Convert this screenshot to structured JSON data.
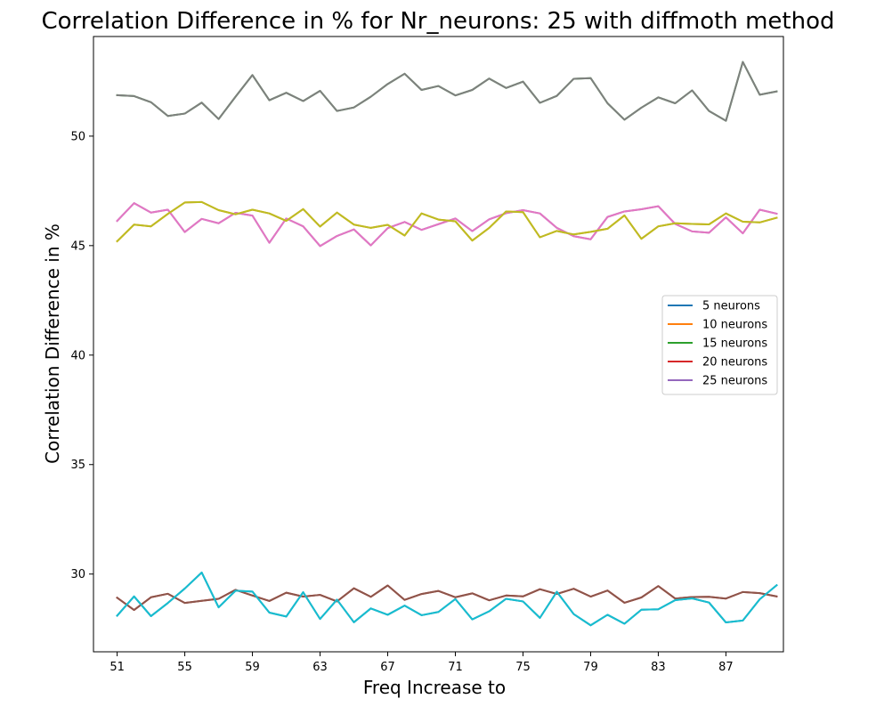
{
  "chart_data": {
    "type": "line",
    "title": "Correlation Difference in % for Nr_neurons:  25 with diffmoth method",
    "xlabel": "Freq Increase to",
    "ylabel": "Correlation Difference in %",
    "xlim": [
      49.6,
      90.4
    ],
    "ylim": [
      26.45,
      54.55
    ],
    "x_ticks": [
      51,
      55,
      59,
      63,
      67,
      71,
      75,
      79,
      83,
      87
    ],
    "x_tick_labels": [
      "51",
      "55",
      "59",
      "63",
      "67",
      "71",
      "75",
      "79",
      "83",
      "87"
    ],
    "y_ticks": [
      30,
      35,
      40,
      45,
      50
    ],
    "y_tick_labels": [
      "30",
      "35",
      "40",
      "45",
      "50"
    ],
    "x": [
      51,
      52,
      53,
      54,
      55,
      56,
      57,
      58,
      59,
      60,
      61,
      62,
      63,
      64,
      65,
      66,
      67,
      68,
      69,
      70,
      71,
      72,
      73,
      74,
      75,
      76,
      77,
      78,
      79,
      80,
      81,
      82,
      83,
      84,
      85,
      86,
      87,
      88,
      89,
      90
    ],
    "grid": false,
    "legend_position": "center-right",
    "series": [
      {
        "name": "5 neurons",
        "color": "#1f77b4",
        "values": [
          28.1,
          28.98,
          28.08,
          28.68,
          29.34,
          30.07,
          28.48,
          29.24,
          29.2,
          28.24,
          28.06,
          29.17,
          27.95,
          28.83,
          27.8,
          28.43,
          28.14,
          28.56,
          28.12,
          28.27,
          28.86,
          27.93,
          28.3,
          28.87,
          28.75,
          28.0,
          29.19,
          28.17,
          27.66,
          28.14,
          27.73,
          28.37,
          28.39,
          28.81,
          28.89,
          28.7,
          27.79,
          27.88,
          28.85,
          29.49
        ]
      },
      {
        "name": "10 neurons",
        "color": "#ff7f0e",
        "values": [
          45.2,
          45.96,
          45.88,
          46.45,
          46.97,
          46.99,
          46.62,
          46.43,
          46.64,
          46.47,
          46.13,
          46.67,
          45.87,
          46.51,
          45.96,
          45.81,
          45.95,
          45.46,
          46.47,
          46.19,
          46.11,
          45.23,
          45.81,
          46.56,
          46.53,
          45.38,
          45.67,
          45.51,
          45.63,
          45.77,
          46.38,
          45.31,
          45.88,
          46.02,
          45.99,
          45.97,
          46.47,
          46.09,
          46.06,
          46.27
        ]
      },
      {
        "name": "15 neurons",
        "color": "#2ca02c",
        "values": [
          51.87,
          51.83,
          51.55,
          50.92,
          51.03,
          51.53,
          50.78,
          51.8,
          52.79,
          51.64,
          51.98,
          51.6,
          52.07,
          51.15,
          51.31,
          51.8,
          52.38,
          52.85,
          52.11,
          52.29,
          51.86,
          52.11,
          52.63,
          52.2,
          52.49,
          51.52,
          51.84,
          52.62,
          52.65,
          51.5,
          50.75,
          51.3,
          51.77,
          51.5,
          52.09,
          51.15,
          50.7,
          53.39,
          51.89,
          52.04
        ]
      },
      {
        "name": "20 neurons",
        "color": "#d62728",
        "values": [
          28.92,
          28.36,
          28.94,
          29.1,
          28.68,
          28.78,
          28.87,
          29.28,
          29.02,
          28.77,
          29.15,
          28.97,
          29.05,
          28.75,
          29.35,
          28.96,
          29.48,
          28.82,
          29.09,
          29.23,
          28.94,
          29.12,
          28.8,
          29.02,
          28.98,
          29.31,
          29.09,
          29.33,
          28.97,
          29.25,
          28.69,
          28.93,
          29.45,
          28.88,
          28.95,
          28.96,
          28.88,
          29.18,
          29.13,
          28.98
        ]
      },
      {
        "name": "25 neurons",
        "color": "#9467bd",
        "values": [
          46.13,
          46.94,
          46.51,
          46.64,
          45.62,
          46.22,
          46.02,
          46.5,
          46.37,
          45.13,
          46.24,
          45.88,
          44.98,
          45.44,
          45.74,
          45.01,
          45.8,
          46.08,
          45.72,
          45.98,
          46.24,
          45.66,
          46.2,
          46.48,
          46.62,
          46.47,
          45.81,
          45.43,
          45.29,
          46.31,
          46.56,
          46.66,
          46.8,
          45.99,
          45.65,
          45.59,
          46.29,
          45.56,
          46.64,
          46.46
        ]
      },
      {
        "name": "",
        "color": "#8c564b",
        "values": [
          28.92,
          28.36,
          28.94,
          29.1,
          28.68,
          28.78,
          28.87,
          29.28,
          29.02,
          28.77,
          29.15,
          28.97,
          29.05,
          28.75,
          29.35,
          28.96,
          29.48,
          28.82,
          29.09,
          29.23,
          28.94,
          29.12,
          28.8,
          29.02,
          28.98,
          29.31,
          29.09,
          29.33,
          28.97,
          29.25,
          28.69,
          28.93,
          29.45,
          28.88,
          28.95,
          28.96,
          28.88,
          29.18,
          29.13,
          28.98
        ]
      },
      {
        "name": "",
        "color": "#e377c2",
        "values": [
          46.13,
          46.94,
          46.51,
          46.64,
          45.62,
          46.22,
          46.02,
          46.5,
          46.37,
          45.13,
          46.24,
          45.88,
          44.98,
          45.44,
          45.74,
          45.01,
          45.8,
          46.08,
          45.72,
          45.98,
          46.24,
          45.66,
          46.2,
          46.48,
          46.62,
          46.47,
          45.81,
          45.43,
          45.29,
          46.31,
          46.56,
          46.66,
          46.8,
          45.99,
          45.65,
          45.59,
          46.29,
          45.56,
          46.64,
          46.46
        ]
      },
      {
        "name": "",
        "color": "#7f7f7f",
        "values": [
          51.87,
          51.83,
          51.55,
          50.92,
          51.03,
          51.53,
          50.78,
          51.8,
          52.79,
          51.64,
          51.98,
          51.6,
          52.07,
          51.15,
          51.31,
          51.8,
          52.38,
          52.85,
          52.11,
          52.29,
          51.86,
          52.11,
          52.63,
          52.2,
          52.49,
          51.52,
          51.84,
          52.62,
          52.65,
          51.5,
          50.75,
          51.3,
          51.77,
          51.5,
          52.09,
          51.15,
          50.7,
          53.39,
          51.89,
          52.04
        ]
      },
      {
        "name": "",
        "color": "#bcbd22",
        "values": [
          45.2,
          45.96,
          45.88,
          46.45,
          46.97,
          46.99,
          46.62,
          46.43,
          46.64,
          46.47,
          46.13,
          46.67,
          45.87,
          46.51,
          45.96,
          45.81,
          45.95,
          45.46,
          46.47,
          46.19,
          46.11,
          45.23,
          45.81,
          46.56,
          46.53,
          45.38,
          45.67,
          45.51,
          45.63,
          45.77,
          46.38,
          45.31,
          45.88,
          46.02,
          45.99,
          45.97,
          46.47,
          46.09,
          46.06,
          46.27
        ]
      },
      {
        "name": "",
        "color": "#17becf",
        "values": [
          28.1,
          28.98,
          28.08,
          28.68,
          29.34,
          30.07,
          28.48,
          29.24,
          29.2,
          28.24,
          28.06,
          29.17,
          27.95,
          28.83,
          27.8,
          28.43,
          28.14,
          28.56,
          28.12,
          28.27,
          28.86,
          27.93,
          28.3,
          28.87,
          28.75,
          28.0,
          29.19,
          28.17,
          27.66,
          28.14,
          27.73,
          28.37,
          28.39,
          28.81,
          28.89,
          28.7,
          27.79,
          27.88,
          28.85,
          29.49
        ]
      }
    ]
  }
}
